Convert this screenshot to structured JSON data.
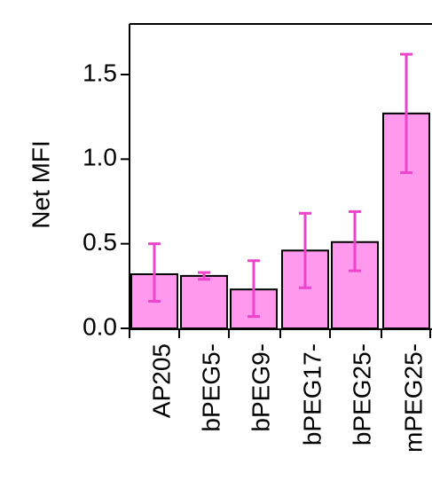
{
  "chart_data": {
    "type": "bar",
    "title": "",
    "xlabel": "",
    "ylabel": "Net MFI",
    "ylim": [
      0,
      1.8
    ],
    "yticks": [
      0.0,
      0.5,
      1.0,
      1.5
    ],
    "ytick_labels": [
      "0.0",
      "0.5",
      "1.0",
      "1.5"
    ],
    "categories": [
      "AP205",
      "bPEG5-",
      "bPEG9-",
      "bPEG17-",
      "bPEG25-",
      "mPEG25-"
    ],
    "values": [
      0.32,
      0.31,
      0.23,
      0.46,
      0.51,
      1.27
    ],
    "error_low": [
      0.16,
      0.29,
      0.07,
      0.24,
      0.34,
      0.92
    ],
    "error_high": [
      0.5,
      0.33,
      0.4,
      0.68,
      0.69,
      1.62
    ],
    "grid": false,
    "colors": {
      "bar_fill": "#ff99ee",
      "bar_stroke": "#000000",
      "error_bar": "#ee44cc",
      "axis": "#000000"
    }
  }
}
